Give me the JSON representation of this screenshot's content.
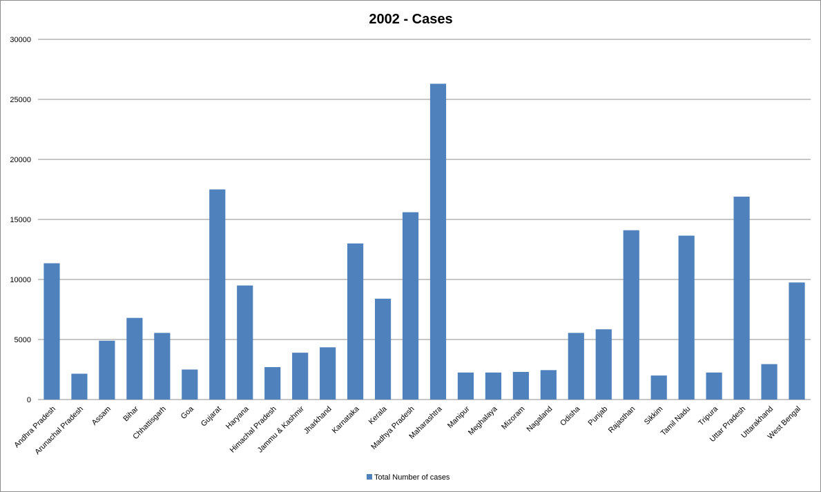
{
  "chart_data": {
    "type": "bar",
    "title": "2002 - Cases",
    "xlabel": "",
    "ylabel": "",
    "ylim": [
      0,
      30000
    ],
    "yticks": [
      "0",
      "5000",
      "10000",
      "15000",
      "20000",
      "25000",
      "30000"
    ],
    "grid": true,
    "legend_position": "bottom",
    "categories": [
      "Andhra Pradesh",
      "Arunachal Pradesh",
      "Assam",
      "Bihar",
      "Chhattisgarh",
      "Goa",
      "Gujarat",
      "Haryana",
      "Himachal Pradesh",
      "Jammu & Kashmir",
      "Jharkhand",
      "Karnataka",
      "Kerala",
      "Madhya Pradesh",
      "Maharashtra",
      "Manipur",
      "Meghalaya",
      "Mizoram",
      "Nagaland",
      "Odisha",
      "Punjab",
      "Rajasthan",
      "Sikkim",
      "Tamil Nadu",
      "Tripura",
      "Uttar Pradesh",
      "Uttarakhand",
      "West Bengal"
    ],
    "series": [
      {
        "name": "Total Number of cases",
        "color": "#4f81bd",
        "values": [
          11350,
          2150,
          4900,
          6800,
          5550,
          2500,
          17500,
          9500,
          2700,
          3900,
          4350,
          13000,
          8400,
          15600,
          26300,
          2250,
          2250,
          2300,
          2450,
          5550,
          5850,
          14100,
          2000,
          13650,
          2250,
          16900,
          2950,
          9750
        ]
      }
    ]
  }
}
